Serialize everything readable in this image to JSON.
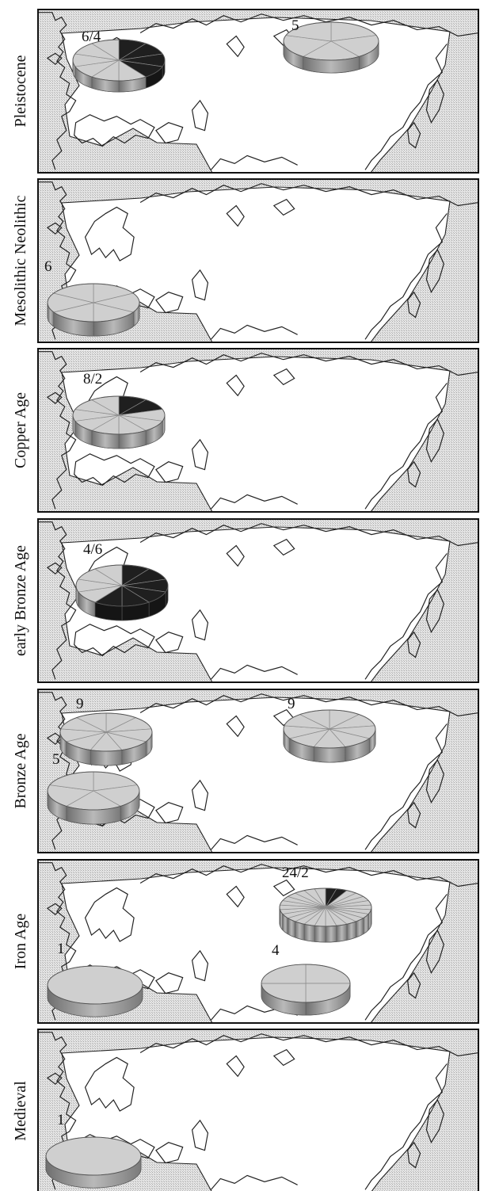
{
  "chart_data": {
    "type": "pie",
    "description_style": "3d-pies-on-eurasia-maps",
    "colors": {
      "slice_light": "#cfcfcf",
      "slice_dark": "#1f1f1f",
      "sea_hatch": "#cfcfcf",
      "land": "#ffffff"
    },
    "panels": [
      {
        "period": "Pleistocene",
        "pies": [
          {
            "label": "6/4",
            "light": 6,
            "dark": 4
          },
          {
            "label": "5",
            "light": 5,
            "dark": 0
          }
        ]
      },
      {
        "period": "Mesolithic Neolithic",
        "pies": [
          {
            "label": "6",
            "light": 6,
            "dark": 0
          }
        ]
      },
      {
        "period": "Copper Age",
        "pies": [
          {
            "label": "8/2",
            "light": 8,
            "dark": 2
          }
        ]
      },
      {
        "period": "early Bronze Age",
        "pies": [
          {
            "label": "4/6",
            "light": 4,
            "dark": 6
          }
        ]
      },
      {
        "period": "Bronze Age",
        "pies": [
          {
            "label": "9",
            "light": 9,
            "dark": 0
          },
          {
            "label": "5",
            "light": 5,
            "dark": 0
          },
          {
            "label": "9",
            "light": 9,
            "dark": 0
          }
        ]
      },
      {
        "period": "Iron Age",
        "pies": [
          {
            "label": "24/2",
            "light": 24,
            "dark": 2
          },
          {
            "label": "1",
            "light": 1,
            "dark": 0
          },
          {
            "label": "4",
            "light": 4,
            "dark": 0
          }
        ]
      },
      {
        "period": "Medieval",
        "pies": [
          {
            "label": "1",
            "light": 1,
            "dark": 0
          }
        ]
      }
    ]
  }
}
